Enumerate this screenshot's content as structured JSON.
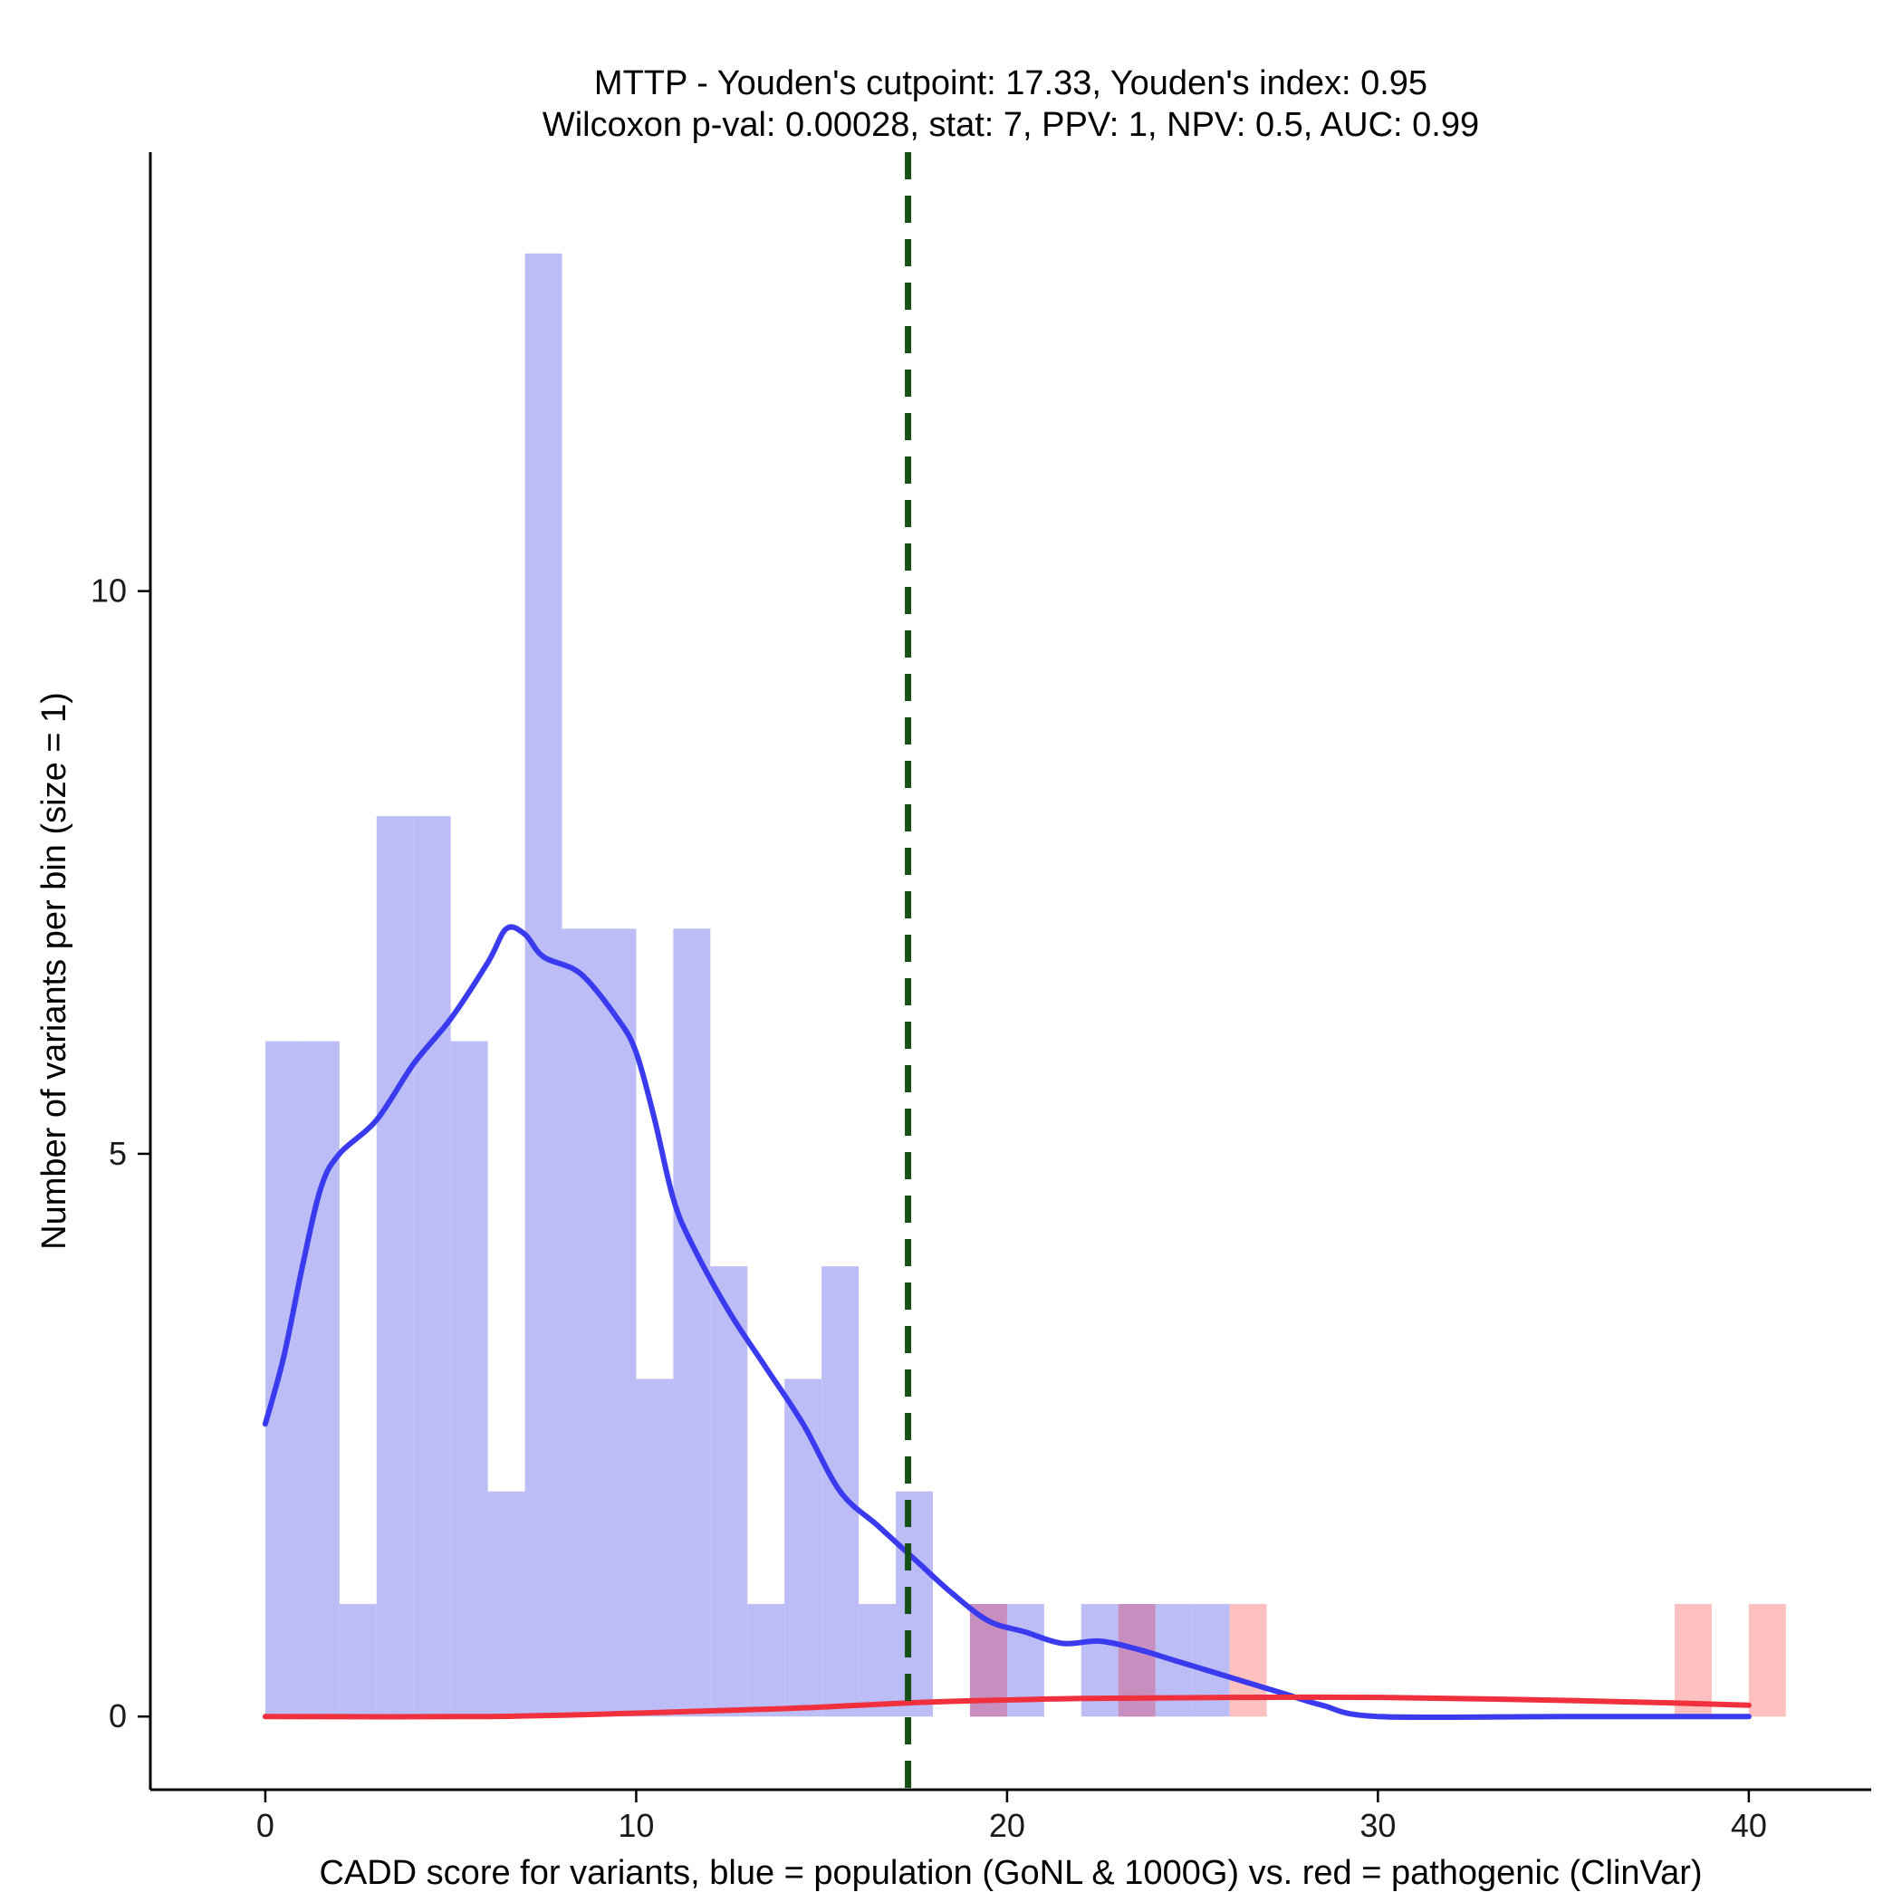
{
  "chart_data": {
    "type": "bar",
    "title_line1": "MTTP - Youden's cutpoint: 17.33, Youden's index: 0.95",
    "title_line2": "Wilcoxon p-val: 0.00028, stat: 7, PPV: 1, NPV: 0.5, AUC: 0.99",
    "xlabel": "CADD score for variants, blue = population (GoNL & 1000G) vs. red = pathogenic (ClinVar)",
    "ylabel": "Number of variants per bin (size = 1)",
    "xlim": [
      -3.1,
      43.3
    ],
    "ylim": [
      -0.65,
      13.9
    ],
    "x_ticks": [
      0,
      10,
      20,
      30,
      40
    ],
    "y_ticks": [
      0,
      5,
      10
    ],
    "bin_size": 1,
    "cutpoint": 17.33,
    "colors": {
      "population_bar": "#bcbcf7",
      "pathogenic_bar": "#ffc0c0",
      "overlap_bar": "#c78fbf",
      "population_line": "#3a3aee",
      "pathogenic_line": "#f0303c",
      "cutpoint_line": "#165016"
    },
    "series": [
      {
        "key": "population",
        "bins": [
          [
            0,
            6
          ],
          [
            1,
            6
          ],
          [
            2,
            1
          ],
          [
            3,
            8
          ],
          [
            4,
            8
          ],
          [
            5,
            6
          ],
          [
            6,
            2
          ],
          [
            7,
            13
          ],
          [
            8,
            7
          ],
          [
            9,
            7
          ],
          [
            10,
            3
          ],
          [
            11,
            7
          ],
          [
            12,
            4
          ],
          [
            13,
            1
          ],
          [
            14,
            3
          ],
          [
            15,
            4
          ],
          [
            16,
            1
          ],
          [
            17,
            2
          ],
          [
            19,
            1
          ],
          [
            20,
            1
          ],
          [
            22,
            1
          ],
          [
            23,
            1
          ],
          [
            24,
            1
          ],
          [
            25,
            1
          ]
        ],
        "density": [
          [
            0,
            2.6
          ],
          [
            0.5,
            3.2
          ],
          [
            1,
            4.0
          ],
          [
            1.5,
            4.7
          ],
          [
            2,
            5.0
          ],
          [
            3,
            5.3
          ],
          [
            4,
            5.8
          ],
          [
            5,
            6.2
          ],
          [
            6,
            6.7
          ],
          [
            6.5,
            7.0
          ],
          [
            7,
            6.95
          ],
          [
            7.5,
            6.75
          ],
          [
            8.5,
            6.6
          ],
          [
            9.5,
            6.2
          ],
          [
            10,
            5.9
          ],
          [
            10.5,
            5.3
          ],
          [
            11,
            4.6
          ],
          [
            11.5,
            4.2
          ],
          [
            12.5,
            3.6
          ],
          [
            13.5,
            3.1
          ],
          [
            14.5,
            2.6
          ],
          [
            15.5,
            2.0
          ],
          [
            16.5,
            1.7
          ],
          [
            17.5,
            1.4
          ],
          [
            18.5,
            1.1
          ],
          [
            19.5,
            0.85
          ],
          [
            20.5,
            0.75
          ],
          [
            21.5,
            0.65
          ],
          [
            22.5,
            0.67
          ],
          [
            23.5,
            0.6
          ],
          [
            24.5,
            0.5
          ],
          [
            25.5,
            0.4
          ],
          [
            26.5,
            0.3
          ],
          [
            27.5,
            0.2
          ],
          [
            28.5,
            0.1
          ],
          [
            30,
            0.0
          ],
          [
            35,
            0.0
          ],
          [
            40,
            0.0
          ]
        ]
      },
      {
        "key": "pathogenic",
        "bins": [
          [
            19,
            1
          ],
          [
            23,
            1
          ],
          [
            26,
            1
          ],
          [
            38,
            1
          ],
          [
            40,
            1
          ]
        ],
        "density": [
          [
            0,
            0
          ],
          [
            6,
            0
          ],
          [
            10,
            0.03
          ],
          [
            14,
            0.07
          ],
          [
            18,
            0.13
          ],
          [
            22,
            0.16
          ],
          [
            26,
            0.17
          ],
          [
            30,
            0.17
          ],
          [
            34,
            0.15
          ],
          [
            38,
            0.12
          ],
          [
            40,
            0.1
          ]
        ]
      }
    ]
  }
}
